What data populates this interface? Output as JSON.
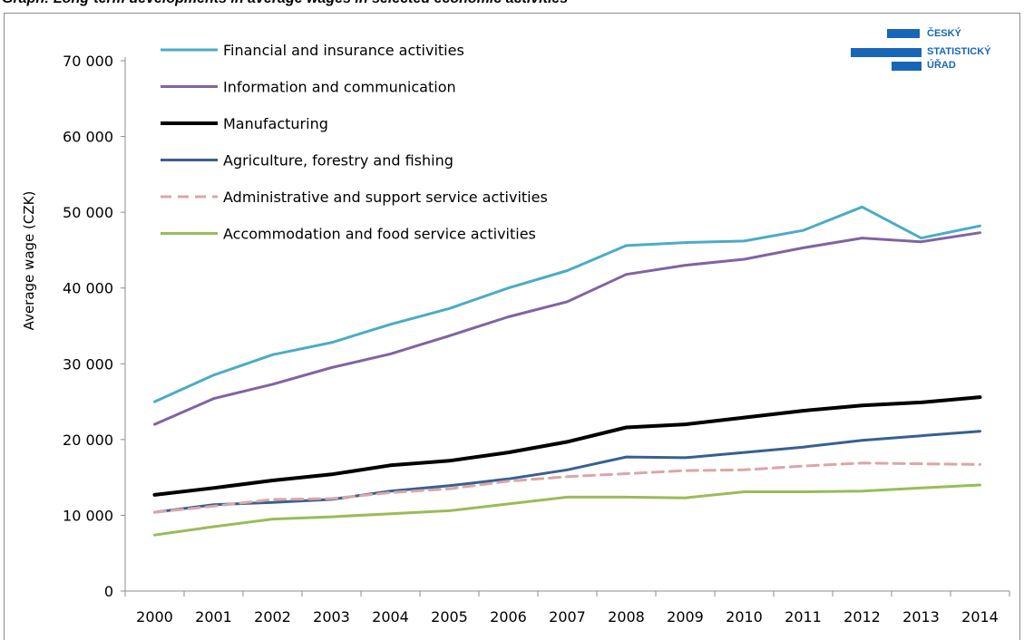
{
  "page": {
    "title": "Graph: Long-term developments in average wages in selected economic activities"
  },
  "logo": {
    "lines": [
      "ČESKÝ",
      "STATISTICKÝ",
      "ÚŘAD"
    ],
    "color": "#1766b8"
  },
  "chart_data": {
    "type": "line",
    "title": "Graph: Long-term developments in average wages in selected economic activities",
    "xlabel": "",
    "ylabel": "Average wage (CZK)",
    "ylim": [
      0,
      70000
    ],
    "yticks": [
      0,
      10000,
      20000,
      30000,
      40000,
      50000,
      60000,
      70000
    ],
    "ytick_labels": [
      "0",
      "10 000",
      "20 000",
      "30 000",
      "40 000",
      "50 000",
      "60 000",
      "70 000"
    ],
    "categories": [
      "2000",
      "2001",
      "2002",
      "2003",
      "2004",
      "2005",
      "2006",
      "2007",
      "2008",
      "2009",
      "2010",
      "2011",
      "2012",
      "2013",
      "2014"
    ],
    "grid": false,
    "legend_position": "top-left",
    "series": [
      {
        "name": "Financial and insurance activities",
        "color": "#4bacc6",
        "dash": false,
        "width": 3,
        "values": [
          25000,
          28500,
          31200,
          32800,
          35200,
          37300,
          40000,
          42300,
          45600,
          46000,
          46200,
          47600,
          50700,
          46600,
          48200
        ]
      },
      {
        "name": "Information and communication",
        "color": "#8064a2",
        "dash": false,
        "width": 3,
        "values": [
          22000,
          25400,
          27300,
          29500,
          31300,
          33700,
          36200,
          38200,
          41800,
          43000,
          43800,
          45300,
          46600,
          46100,
          47300
        ]
      },
      {
        "name": "Manufacturing",
        "color": "#000000",
        "dash": false,
        "width": 4,
        "values": [
          12700,
          13600,
          14600,
          15400,
          16600,
          17200,
          18300,
          19700,
          21600,
          22000,
          22900,
          23800,
          24500,
          24900,
          25600
        ]
      },
      {
        "name": "Agriculture, forestry and fishing",
        "color": "#376092",
        "dash": false,
        "width": 3,
        "values": [
          10400,
          11400,
          11700,
          12100,
          13200,
          13900,
          14800,
          16000,
          17700,
          17600,
          18300,
          19000,
          19900,
          20500,
          21100
        ]
      },
      {
        "name": "Administrative and support service activities",
        "color": "#d9a7a7",
        "dash": true,
        "width": 3,
        "values": [
          10400,
          11200,
          12100,
          12200,
          13000,
          13500,
          14500,
          15100,
          15500,
          15900,
          16000,
          16500,
          16900,
          16800,
          16700
        ]
      },
      {
        "name": "Accommodation and food service activities",
        "color": "#9bbb59",
        "dash": false,
        "width": 3,
        "values": [
          7400,
          8500,
          9500,
          9800,
          10200,
          10600,
          11500,
          12400,
          12400,
          12300,
          13100,
          13100,
          13200,
          13600,
          14000
        ]
      }
    ]
  }
}
